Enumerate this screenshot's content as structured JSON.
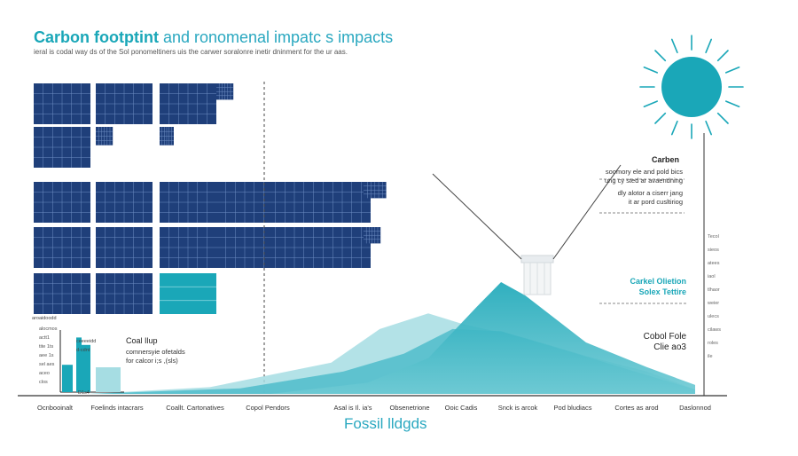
{
  "header": {
    "title_strong": "Carbon footptint",
    "title_light": " and ronomenal impatc s impacts",
    "subtitle": "ieral is codal way ds of the Sol ponomeltiners uis the carwer soralonre inetir dninment for the ur aas."
  },
  "colors": {
    "panel": "#1f3f7a",
    "panel_grid": "#6f8fc4",
    "teal": "#1aa7b8",
    "teal_light": "#a6dde3",
    "teal_mid": "#54bfcc",
    "dark_line": "#1a1a1a"
  },
  "icons": {
    "sun": "sun-icon",
    "smokestack": "smokestack-icon"
  },
  "annotations": {
    "carbon": {
      "heading": "Carben",
      "lines": [
        "soomory ele and pold bics",
        "ung cy sted ar avaendning",
        "dly alotor a ciserr jang",
        "it ar pord cusltiriog"
      ]
    },
    "carbon_obligation": {
      "line1": "Carkel Olietion",
      "line2": "Solex Tettire"
    },
    "cobol": {
      "line1": "Cobol Fole",
      "line2": "Clie ao3"
    },
    "coal": {
      "heading": "Coal Ilup",
      "lines": [
        "comnersyie ofetalds",
        "for calcor i;s ,(sls)"
      ]
    }
  },
  "axis": {
    "left_ticks": [
      "alocmos",
      "actt1",
      "tite 1ts",
      "aee 1s",
      "sel aes",
      "aceo",
      "clos"
    ],
    "left_bar_labels": [
      "aroaidoodd",
      "ceeeeidd",
      "d-cdnt",
      "D1s4"
    ],
    "right_ticks": [
      "Tecol",
      "sieos",
      "atees",
      "iaol",
      "tlhaor",
      "weier",
      "ulecs",
      "cilaws",
      "roles",
      "ile"
    ]
  },
  "x_labels": [
    "Ocnbooinalt",
    "Foelinds intacrars",
    "Coallt. Cartonatives",
    "Copol Pendors",
    "Asal is Il. ia's",
    "Obsenetrione",
    "Ooic Cadis",
    "Snck is arcok",
    "Pod bludiacs",
    "Cortes as arod",
    "Daslonnod"
  ],
  "footer": {
    "fossil_label": "Fossil lldgds"
  },
  "chart_data": {
    "type": "area",
    "title": "Carbon footptint and ronomenal impatc s impacts",
    "series": [
      {
        "kind": "area",
        "color": "#a6dde3",
        "points": [
          [
            0,
            0
          ],
          [
            20,
            6
          ],
          [
            40,
            28
          ],
          [
            48,
            58
          ],
          [
            56,
            72
          ],
          [
            62,
            62
          ],
          [
            72,
            50
          ],
          [
            82,
            34
          ],
          [
            92,
            20
          ],
          [
            100,
            4
          ]
        ]
      },
      {
        "kind": "area",
        "color": "#54bfcc",
        "points": [
          [
            0,
            0
          ],
          [
            25,
            5
          ],
          [
            42,
            20
          ],
          [
            52,
            36
          ],
          [
            60,
            58
          ],
          [
            68,
            56
          ],
          [
            78,
            40
          ],
          [
            90,
            20
          ],
          [
            100,
            4
          ]
        ]
      },
      {
        "kind": "area",
        "color": "#1aa7b8",
        "points": [
          [
            30,
            0
          ],
          [
            46,
            10
          ],
          [
            56,
            32
          ],
          [
            64,
            78
          ],
          [
            68,
            100
          ],
          [
            72,
            88
          ],
          [
            82,
            46
          ],
          [
            92,
            24
          ],
          [
            100,
            8
          ]
        ]
      }
    ],
    "left_bars": [
      {
        "value": 44,
        "color": "#1aa7b8"
      },
      {
        "value": 88,
        "color": "#1aa7b8"
      },
      {
        "value": 76,
        "color": "#1aa7b8"
      },
      {
        "value": 40,
        "color": "#a6dde3"
      }
    ],
    "solar_panel_rows": [
      [
        1,
        1,
        1,
        0.3
      ],
      [
        1,
        0.3,
        0.25
      ],
      [
        1,
        1,
        1,
        1,
        1,
        1,
        0.4
      ],
      [
        1,
        1,
        1,
        1,
        1,
        1,
        0.3
      ],
      [
        1,
        1,
        1
      ]
    ],
    "highlight_panel": {
      "row": 4,
      "index": 2
    }
  }
}
